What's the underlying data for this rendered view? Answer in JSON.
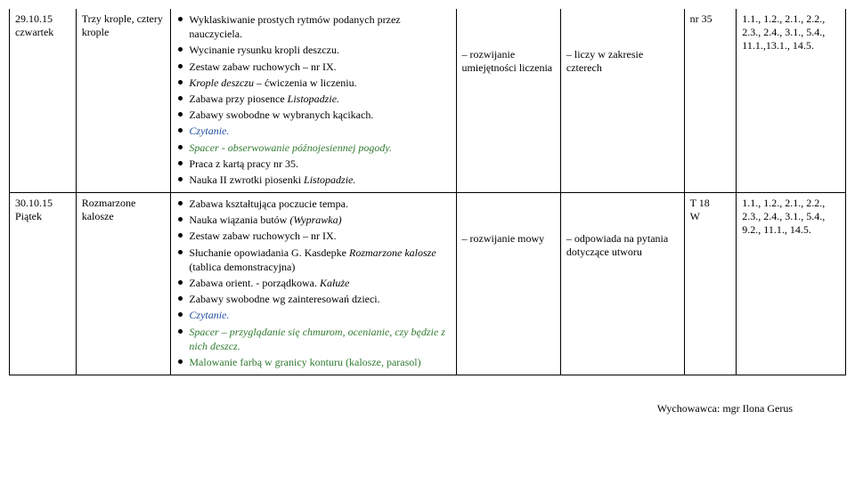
{
  "rows": [
    {
      "date": "29.10.15",
      "day": "czwartek",
      "topic": "Trzy krople, cztery krople",
      "activities": [
        {
          "text": "Wyklaskiwanie prostych rytmów podanych przez nauczyciela."
        },
        {
          "text": "Wycinanie rysunku kropli deszczu."
        },
        {
          "text": "Zestaw zabaw ruchowych – nr IX."
        },
        {
          "prefix": "Krople deszczu",
          "prefix_it": true,
          "suffix": " – ćwiczenia w liczeniu."
        },
        {
          "text": "Zabawa przy piosence ",
          "tail": "Listopadzie.",
          "tail_it": true
        },
        {
          "text": "Zabawy swobodne w wybranych kącikach."
        },
        {
          "text": "Czytanie.",
          "cls": "it blue"
        },
        {
          "text": "Spacer - obserwowanie późnojesiennej pogody.",
          "cls": "it green"
        },
        {
          "text": "Praca z kartą pracy nr 35."
        },
        {
          "text": "Nauka II zwrotki piosenki ",
          "tail": "Listopadzie.",
          "tail_it": true
        }
      ],
      "dev": "– rozwijanie umiejętności liczenia",
      "child": "– liczy w zakresie czterech",
      "num": "nr 35",
      "ref": "1.1., 1.2., 2.1., 2.2., 2.3., 2.4., 3.1., 5.4., 11.1.,13.1., 14.5."
    },
    {
      "date": "30.10.15",
      "day": "Piątek",
      "topic": "Rozmarzone kalosze",
      "activities": [
        {
          "text": "Zabawa kształtująca poczucie tempa."
        },
        {
          "text": "Nauka wiązania butów ",
          "tail": "(Wyprawka)",
          "tail_it": true
        },
        {
          "text": "Zestaw zabaw ruchowych – nr IX."
        },
        {
          "text": "Słuchanie opowiadania G. Kasdepke ",
          "mid": "Rozmarzone kalosze",
          "mid_it": true,
          "after": " (tablica demonstracyjna)"
        },
        {
          "text": "Zabawa orient. - porządkowa. ",
          "tail": "Kałuże",
          "tail_it": true
        },
        {
          "text": "Zabawy swobodne wg zainteresowań dzieci."
        },
        {
          "text": "Czytanie.",
          "cls": "it blue"
        },
        {
          "text": "Spacer – przyglądanie się chmurom, ocenianie, czy będzie  z nich deszcz.",
          "cls": "it green"
        },
        {
          "text": "Malowanie farbą w granicy konturu (kalosze, parasol)",
          "cls": "green"
        }
      ],
      "dev": "– rozwijanie mowy",
      "child": "– odpowiada na pytania dotyczące utworu",
      "num": "T 18\nW",
      "ref": "1.1., 1.2., 2.1., 2.2., 2.3., 2.4., 3.1., 5.4., 9.2., 11.1., 14.5."
    }
  ],
  "signature": "Wychowawca: mgr Ilona Gerus"
}
